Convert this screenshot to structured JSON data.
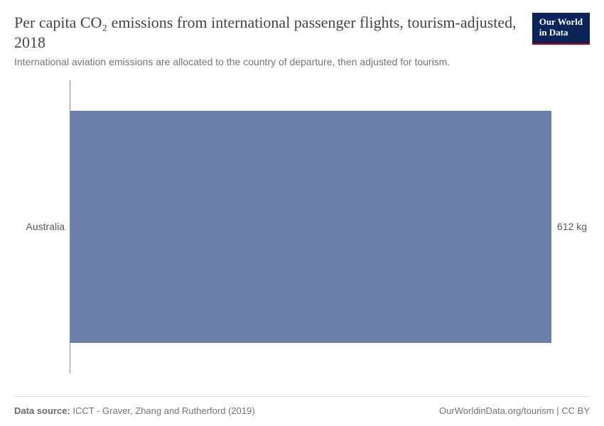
{
  "header": {
    "title": "Per capita CO₂ emissions from international passenger flights, tourism-adjusted, 2018",
    "subtitle": "International aviation emissions are allocated to the country of departure, then adjusted for tourism.",
    "logo_line1": "Our World",
    "logo_line2": "in Data"
  },
  "chart": {
    "type": "bar-horizontal",
    "xlim": [
      0,
      612
    ],
    "background_color": "#ffffff",
    "axis_color": "#8a8a8a",
    "bar_top_pct": 10.3,
    "bar_height_pct": 79.4,
    "bars": [
      {
        "category": "Australia",
        "value": 612,
        "value_label": "612 kg",
        "color": "#6a80a8"
      }
    ],
    "label_fontsize": 14,
    "label_color": "#5a5a5a"
  },
  "footer": {
    "source_label": "Data source:",
    "source_text": "ICCT - Graver, Zhang and Rutherford (2019)",
    "attribution": "OurWorldinData.org/tourism",
    "license": "CC BY"
  },
  "colors": {
    "title": "#444444",
    "subtitle": "#747474",
    "logo_bg": "#0a2458",
    "logo_underline": "#c3001e",
    "footer_border": "#e2e2e2"
  }
}
